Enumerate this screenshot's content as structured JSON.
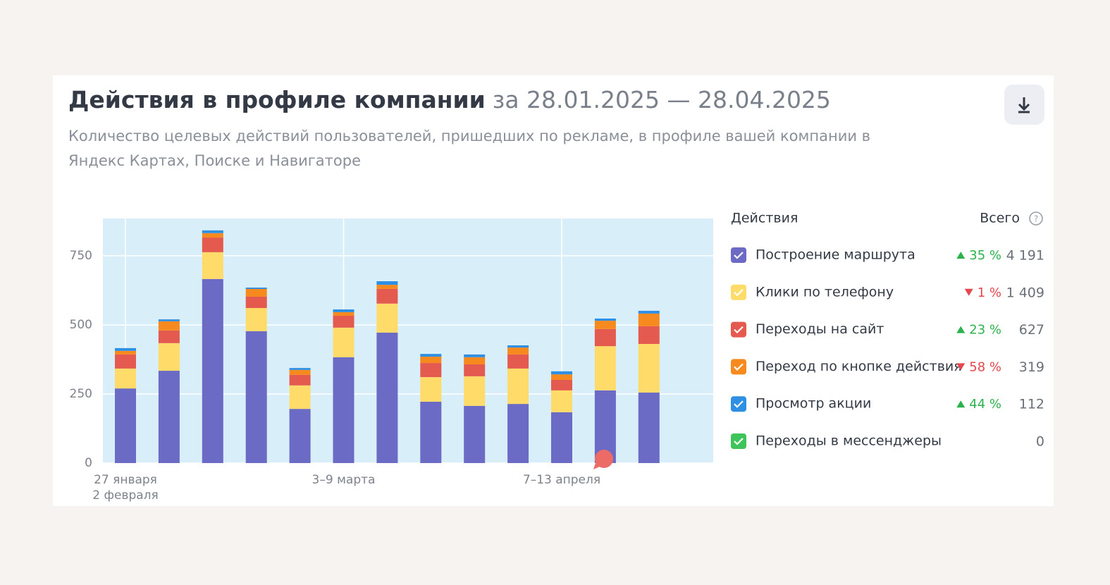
{
  "chart_data": {
    "type": "stacked-bar",
    "title": "Действия в профиле компании",
    "period": "за 28.01.2025 — 28.04.2025",
    "subtitle": "Количество целевых действий пользователей, пришедших по рекламе, в профиле вашей компании в Яндекс Картах, Поиске и Навигаторе",
    "categories": [
      "27 января\n2 февраля",
      null,
      null,
      null,
      null,
      "3–9 марта",
      null,
      null,
      null,
      null,
      "7–13 апреля",
      null,
      null
    ],
    "ylim": [
      0,
      885
    ],
    "yticks": [
      0,
      250,
      500,
      750
    ],
    "grid": true,
    "plot_background": "#d8eff9",
    "legend_title": "Действия",
    "legend_total_title": "Всего",
    "series": [
      {
        "name": "Построение маршрута",
        "color": "#6b6ac4",
        "change": "35 %",
        "change_direction": "up",
        "total": "4 191",
        "values": [
          270,
          334,
          666,
          477,
          196,
          383,
          472,
          222,
          207,
          214,
          184,
          263,
          255
        ]
      },
      {
        "name": "Клики по телефону",
        "color": "#ffdb6a",
        "change": "1 %",
        "change_direction": "down",
        "total": "1 409",
        "values": [
          72,
          100,
          97,
          84,
          85,
          107,
          105,
          89,
          107,
          128,
          79,
          160,
          176
        ]
      },
      {
        "name": "Переходы на сайт",
        "color": "#e45a4f",
        "change": "23 %",
        "change_direction": "up",
        "total": "627",
        "values": [
          51,
          46,
          53,
          41,
          38,
          43,
          53,
          51,
          43,
          51,
          38,
          62,
          64
        ]
      },
      {
        "name": "Переход по кнопке действия",
        "color": "#f68a1f",
        "change": "58 %",
        "change_direction": "down",
        "total": "319",
        "values": [
          13,
          33,
          16,
          28,
          18,
          13,
          15,
          23,
          26,
          25,
          20,
          30,
          46
        ]
      },
      {
        "name": "Просмотр акции",
        "color": "#2f8fe2",
        "change": "44 %",
        "change_direction": "up",
        "total": "112",
        "values": [
          10,
          7,
          10,
          5,
          7,
          10,
          13,
          10,
          10,
          8,
          11,
          8,
          10
        ]
      },
      {
        "name": "Переходы в мессенджеры",
        "color": "#3fc35b",
        "total": "0",
        "values": [
          0,
          0,
          0,
          0,
          0,
          0,
          0,
          0,
          0,
          0,
          0,
          0,
          0
        ]
      }
    ]
  }
}
